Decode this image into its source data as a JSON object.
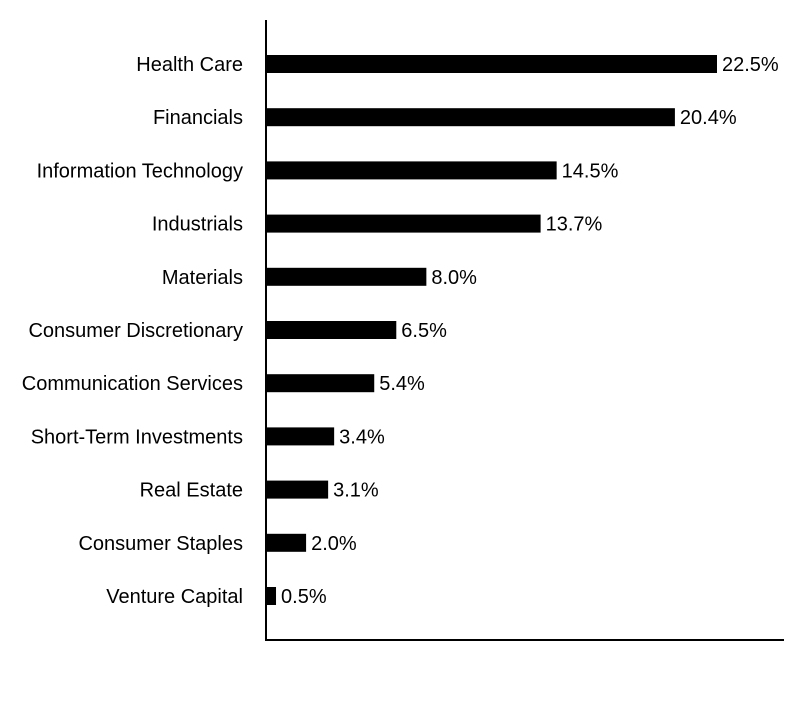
{
  "chart_data": {
    "type": "bar",
    "orientation": "horizontal",
    "categories": [
      "Health Care",
      "Financials",
      "Information Technology",
      "Industrials",
      "Materials",
      "Consumer Discretionary",
      "Communication Services",
      "Short-Term Investments",
      "Real Estate",
      "Consumer Staples",
      "Venture Capital"
    ],
    "values": [
      22.5,
      20.4,
      14.5,
      13.7,
      8.0,
      6.5,
      5.4,
      3.4,
      3.1,
      2.0,
      0.5
    ],
    "value_labels": [
      "22.5%",
      "20.4%",
      "14.5%",
      "13.7%",
      "8.0%",
      "6.5%",
      "5.4%",
      "3.4%",
      "3.1%",
      "2.0%",
      "0.5%"
    ],
    "title": "",
    "xlabel": "",
    "ylabel": "",
    "xlim": [
      0,
      25.8
    ],
    "grid": false,
    "legend": "none",
    "bar_color": "#000000",
    "axis_color": "#000000"
  }
}
